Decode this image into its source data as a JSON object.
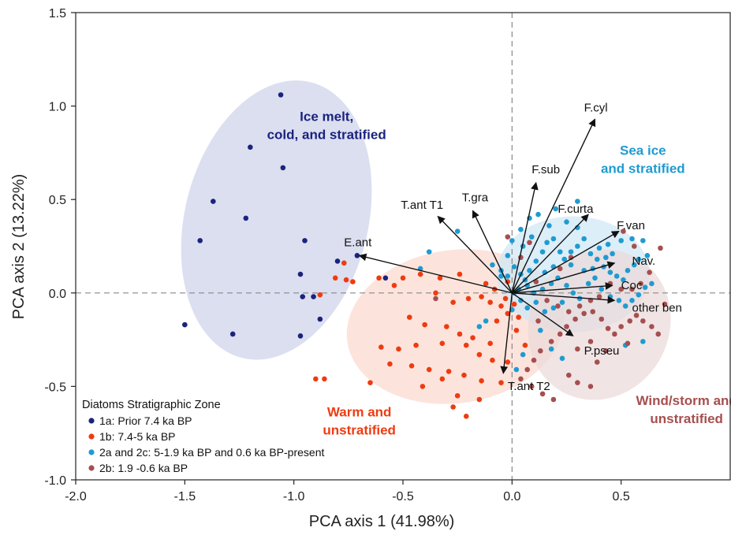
{
  "chart_data": {
    "type": "scatter",
    "title": "",
    "xlabel": "PCA axis 1 (41.98%)",
    "ylabel": "PCA axis 2 (13.22%)",
    "xlim": [
      -2.0,
      1.0
    ],
    "ylim": [
      -1.0,
      1.5
    ],
    "xticks": [
      "-2.0",
      "-1.5",
      "-1.0",
      "-0.5",
      "0.0",
      "0.5"
    ],
    "yticks": [
      "-1.0",
      "-0.5",
      "0.0",
      "0.5",
      "1.0",
      "1.5"
    ],
    "grid": false,
    "reference_lines": {
      "x": 0,
      "y": 0,
      "style": "dashed"
    },
    "legend": {
      "title": "Diatoms Stratigraphic Zone",
      "placement": "bottom-left",
      "entries": [
        {
          "label": "1a: Prior 7.4 ka BP",
          "color": "#1a237e"
        },
        {
          "label": "1b: 7.4-5 ka BP",
          "color": "#ef3b10"
        },
        {
          "label": "2a and 2c: 5-1.9 ka BP and 0.6 ka BP-present",
          "color": "#1f9bd1"
        },
        {
          "label": "2b: 1.9 -0.6 ka BP",
          "color": "#a64f4f"
        }
      ]
    },
    "regions": [
      {
        "name": "Ice melt, cold, and stratified",
        "lines": [
          "Ice melt,",
          "cold, and stratified"
        ],
        "color": "#1a237e",
        "fill": "#cfd3ea",
        "cx": -1.08,
        "cy": 0.39,
        "rx": 0.42,
        "ry": 0.76,
        "angle": 14
      },
      {
        "name": "Warm and unstratified",
        "lines": [
          "Warm and",
          "unstratified"
        ],
        "color": "#ef3b10",
        "fill": "#fbd9cf",
        "cx": -0.26,
        "cy": -0.18,
        "rx": 0.5,
        "ry": 0.41,
        "angle": -8
      },
      {
        "name": "Sea ice and stratified",
        "lines": [
          "Sea ice",
          "and stratified"
        ],
        "color": "#1f9bd1",
        "fill": "#cfe8f5",
        "cx": 0.28,
        "cy": 0.1,
        "rx": 0.35,
        "ry": 0.31,
        "angle": 0
      },
      {
        "name": "Wind/storm and unstratified",
        "lines": [
          "Wind/storm and",
          "unstratified"
        ],
        "color": "#a64f4f",
        "fill": "#ecd9d9",
        "cx": 0.4,
        "cy": -0.17,
        "rx": 0.32,
        "ry": 0.41,
        "angle": 28
      }
    ],
    "region_label_positions": [
      {
        "x": -0.85,
        "y": 0.92
      },
      {
        "x": -0.7,
        "y": -0.66
      },
      {
        "x": 0.6,
        "y": 0.74
      },
      {
        "x": 0.8,
        "y": -0.6
      }
    ],
    "loadings": [
      {
        "label": "F.cyl",
        "x": 0.38,
        "y": 0.93,
        "lx": 0.33,
        "ly": 0.97
      },
      {
        "label": "F.sub",
        "x": 0.11,
        "y": 0.59,
        "lx": 0.09,
        "ly": 0.64
      },
      {
        "label": "T.gra",
        "x": -0.18,
        "y": 0.44,
        "lx": -0.23,
        "ly": 0.49
      },
      {
        "label": "T.ant T1",
        "x": -0.34,
        "y": 0.41,
        "lx": -0.51,
        "ly": 0.45
      },
      {
        "label": "F.curta",
        "x": 0.35,
        "y": 0.42,
        "lx": 0.21,
        "ly": 0.43
      },
      {
        "label": "F.van",
        "x": 0.49,
        "y": 0.33,
        "lx": 0.48,
        "ly": 0.34
      },
      {
        "label": "E.ant",
        "x": -0.7,
        "y": 0.2,
        "lx": -0.77,
        "ly": 0.25
      },
      {
        "label": "Nav.",
        "x": 0.47,
        "y": 0.16,
        "lx": 0.55,
        "ly": 0.15
      },
      {
        "label": "Coc",
        "x": 0.46,
        "y": 0.04,
        "lx": 0.5,
        "ly": 0.02
      },
      {
        "label": "other ben",
        "x": 0.47,
        "y": -0.04,
        "lx": 0.55,
        "ly": -0.1
      },
      {
        "label": "P.pseu",
        "x": 0.28,
        "y": -0.23,
        "lx": 0.33,
        "ly": -0.33
      },
      {
        "label": "T.ant T2",
        "x": -0.04,
        "y": -0.43,
        "lx": -0.02,
        "ly": -0.52
      }
    ],
    "series": [
      {
        "name": "1a: Prior 7.4 ka BP",
        "color": "#1a237e",
        "points": [
          [
            -1.06,
            1.06
          ],
          [
            -1.2,
            0.78
          ],
          [
            -1.05,
            0.67
          ],
          [
            -1.37,
            0.49
          ],
          [
            -1.22,
            0.4
          ],
          [
            -1.43,
            0.28
          ],
          [
            -0.95,
            0.28
          ],
          [
            -0.8,
            0.17
          ],
          [
            -0.71,
            0.2
          ],
          [
            -0.97,
            0.1
          ],
          [
            -0.96,
            -0.02
          ],
          [
            -0.91,
            -0.02
          ],
          [
            -0.88,
            -0.14
          ],
          [
            -1.5,
            -0.17
          ],
          [
            -1.28,
            -0.22
          ],
          [
            -0.97,
            -0.23
          ],
          [
            -0.58,
            0.08
          ]
        ]
      },
      {
        "name": "1b: 7.4-5 ka BP",
        "color": "#ef3b10",
        "points": [
          [
            -0.77,
            0.16
          ],
          [
            -0.81,
            0.08
          ],
          [
            -0.76,
            0.07
          ],
          [
            -0.73,
            0.06
          ],
          [
            -0.61,
            0.08
          ],
          [
            -0.54,
            0.04
          ],
          [
            -0.5,
            0.08
          ],
          [
            -0.42,
            0.1
          ],
          [
            -0.33,
            0.08
          ],
          [
            -0.24,
            0.1
          ],
          [
            -0.12,
            0.05
          ],
          [
            -0.08,
            0.02
          ],
          [
            -0.02,
            0.06
          ],
          [
            -0.88,
            -0.01
          ],
          [
            -0.35,
            0.0
          ],
          [
            -0.27,
            -0.05
          ],
          [
            -0.2,
            -0.03
          ],
          [
            -0.14,
            -0.02
          ],
          [
            -0.1,
            -0.05
          ],
          [
            -0.05,
            -0.07
          ],
          [
            -0.02,
            -0.11
          ],
          [
            0.03,
            -0.13
          ],
          [
            -0.47,
            -0.13
          ],
          [
            -0.4,
            -0.17
          ],
          [
            -0.3,
            -0.18
          ],
          [
            -0.24,
            -0.22
          ],
          [
            -0.18,
            -0.24
          ],
          [
            -0.1,
            -0.27
          ],
          [
            -0.07,
            -0.15
          ],
          [
            0.02,
            -0.2
          ],
          [
            0.06,
            -0.28
          ],
          [
            -0.32,
            -0.27
          ],
          [
            -0.21,
            -0.28
          ],
          [
            -0.15,
            -0.33
          ],
          [
            -0.09,
            -0.36
          ],
          [
            -0.02,
            -0.37
          ],
          [
            -0.6,
            -0.29
          ],
          [
            -0.52,
            -0.3
          ],
          [
            -0.44,
            -0.28
          ],
          [
            -0.56,
            -0.38
          ],
          [
            -0.46,
            -0.39
          ],
          [
            -0.38,
            -0.41
          ],
          [
            -0.29,
            -0.42
          ],
          [
            -0.22,
            -0.44
          ],
          [
            -0.14,
            -0.47
          ],
          [
            -0.05,
            -0.48
          ],
          [
            -0.65,
            -0.48
          ],
          [
            -0.41,
            -0.5
          ],
          [
            -0.32,
            -0.46
          ],
          [
            -0.25,
            -0.55
          ],
          [
            -0.15,
            -0.57
          ],
          [
            -0.9,
            -0.46
          ],
          [
            -0.86,
            -0.46
          ],
          [
            -0.27,
            -0.61
          ],
          [
            -0.21,
            -0.66
          ],
          [
            -0.03,
            -0.03
          ],
          [
            0.01,
            -0.06
          ]
        ]
      },
      {
        "name": "2a and 2c: 5-1.9 ka BP and 0.6 ka BP-present",
        "color": "#1f9bd1",
        "points": [
          [
            -0.09,
            0.15
          ],
          [
            -0.05,
            0.12
          ],
          [
            -0.02,
            0.09
          ],
          [
            -0.12,
            -0.15
          ],
          [
            0.01,
            0.0
          ],
          [
            0.03,
            0.02
          ],
          [
            0.06,
            0.07
          ],
          [
            0.08,
            0.12
          ],
          [
            0.11,
            0.17
          ],
          [
            0.05,
            0.25
          ],
          [
            0.09,
            0.3
          ],
          [
            0.14,
            0.22
          ],
          [
            0.16,
            0.27
          ],
          [
            0.19,
            0.29
          ],
          [
            0.22,
            0.22
          ],
          [
            0.24,
            0.18
          ],
          [
            0.27,
            0.22
          ],
          [
            0.3,
            0.25
          ],
          [
            0.33,
            0.29
          ],
          [
            0.36,
            0.21
          ],
          [
            0.39,
            0.18
          ],
          [
            0.42,
            0.14
          ],
          [
            0.45,
            0.11
          ],
          [
            0.48,
            0.09
          ],
          [
            0.51,
            0.07
          ],
          [
            0.53,
            0.12
          ],
          [
            0.56,
            0.15
          ],
          [
            0.58,
            0.18
          ],
          [
            0.62,
            0.2
          ],
          [
            0.6,
            0.28
          ],
          [
            0.55,
            0.29
          ],
          [
            0.5,
            0.28
          ],
          [
            0.44,
            0.26
          ],
          [
            0.4,
            0.24
          ],
          [
            0.3,
            0.35
          ],
          [
            0.25,
            0.38
          ],
          [
            0.2,
            0.45
          ],
          [
            0.17,
            0.36
          ],
          [
            0.12,
            0.42
          ],
          [
            0.08,
            0.4
          ],
          [
            0.04,
            0.34
          ],
          [
            0.0,
            0.28
          ],
          [
            -0.02,
            0.2
          ],
          [
            0.01,
            0.14
          ],
          [
            0.04,
            0.1
          ],
          [
            0.07,
            0.04
          ],
          [
            0.1,
            0.0
          ],
          [
            0.14,
            0.02
          ],
          [
            0.18,
            0.05
          ],
          [
            0.21,
            0.08
          ],
          [
            0.25,
            0.04
          ],
          [
            0.28,
            0.0
          ],
          [
            0.31,
            -0.03
          ],
          [
            0.35,
            0.05
          ],
          [
            0.38,
            0.08
          ],
          [
            0.41,
            0.02
          ],
          [
            0.45,
            -0.02
          ],
          [
            0.49,
            -0.04
          ],
          [
            0.52,
            -0.07
          ],
          [
            0.55,
            -0.04
          ],
          [
            0.58,
            -0.01
          ],
          [
            0.61,
            0.03
          ],
          [
            0.64,
            0.05
          ],
          [
            0.3,
            0.49
          ],
          [
            0.27,
            0.15
          ],
          [
            0.23,
            -0.05
          ],
          [
            0.19,
            -0.08
          ],
          [
            0.15,
            -0.1
          ],
          [
            0.11,
            -0.05
          ],
          [
            0.07,
            -0.08
          ],
          [
            0.04,
            -0.04
          ],
          [
            0.0,
            -0.09
          ],
          [
            0.15,
            0.11
          ],
          [
            0.19,
            0.14
          ],
          [
            0.33,
            0.12
          ],
          [
            0.37,
            0.13
          ],
          [
            0.43,
            0.19
          ],
          [
            0.46,
            0.21
          ],
          [
            0.6,
            -0.26
          ],
          [
            0.52,
            -0.28
          ],
          [
            0.23,
            -0.35
          ],
          [
            0.18,
            -0.3
          ],
          [
            0.13,
            -0.2
          ],
          [
            0.05,
            -0.33
          ],
          [
            0.02,
            -0.41
          ],
          [
            -0.25,
            0.33
          ],
          [
            -0.38,
            0.22
          ],
          [
            -0.42,
            0.13
          ],
          [
            -0.15,
            -0.18
          ],
          [
            -0.05,
            0.09
          ]
        ]
      },
      {
        "name": "2b: 1.9 -0.6 ka BP",
        "color": "#a64f4f",
        "points": [
          [
            0.11,
            0.06
          ],
          [
            0.16,
            -0.04
          ],
          [
            0.21,
            -0.07
          ],
          [
            0.26,
            -0.1
          ],
          [
            0.29,
            -0.14
          ],
          [
            0.33,
            -0.11
          ],
          [
            0.37,
            -0.1
          ],
          [
            0.41,
            -0.14
          ],
          [
            0.44,
            -0.19
          ],
          [
            0.47,
            -0.22
          ],
          [
            0.5,
            -0.18
          ],
          [
            0.54,
            -0.15
          ],
          [
            0.57,
            -0.12
          ],
          [
            0.6,
            -0.15
          ],
          [
            0.64,
            -0.18
          ],
          [
            0.67,
            -0.22
          ],
          [
            0.7,
            -0.06
          ],
          [
            0.68,
            0.24
          ],
          [
            0.63,
            0.11
          ],
          [
            0.59,
            0.05
          ],
          [
            0.55,
            0.02
          ],
          [
            0.5,
            0.02
          ],
          [
            0.45,
            0.05
          ],
          [
            0.4,
            -0.02
          ],
          [
            0.36,
            -0.04
          ],
          [
            0.31,
            -0.07
          ],
          [
            0.25,
            -0.18
          ],
          [
            0.22,
            -0.22
          ],
          [
            0.18,
            -0.26
          ],
          [
            0.13,
            -0.31
          ],
          [
            0.1,
            -0.36
          ],
          [
            0.07,
            -0.41
          ],
          [
            0.04,
            -0.46
          ],
          [
            0.09,
            -0.5
          ],
          [
            0.14,
            -0.54
          ],
          [
            0.19,
            -0.57
          ],
          [
            0.26,
            -0.44
          ],
          [
            0.3,
            -0.48
          ],
          [
            0.36,
            -0.5
          ],
          [
            0.39,
            -0.37
          ],
          [
            0.43,
            -0.31
          ],
          [
            0.36,
            -0.26
          ],
          [
            0.3,
            -0.3
          ],
          [
            0.08,
            0.27
          ],
          [
            0.04,
            0.19
          ],
          [
            -0.02,
            0.3
          ],
          [
            0.51,
            0.33
          ],
          [
            0.56,
            0.25
          ],
          [
            0.53,
            -0.27
          ],
          [
            -0.35,
            -0.03
          ],
          [
            0.12,
            -0.15
          ],
          [
            0.22,
            0.13
          ],
          [
            0.27,
            0.19
          ]
        ]
      }
    ]
  }
}
